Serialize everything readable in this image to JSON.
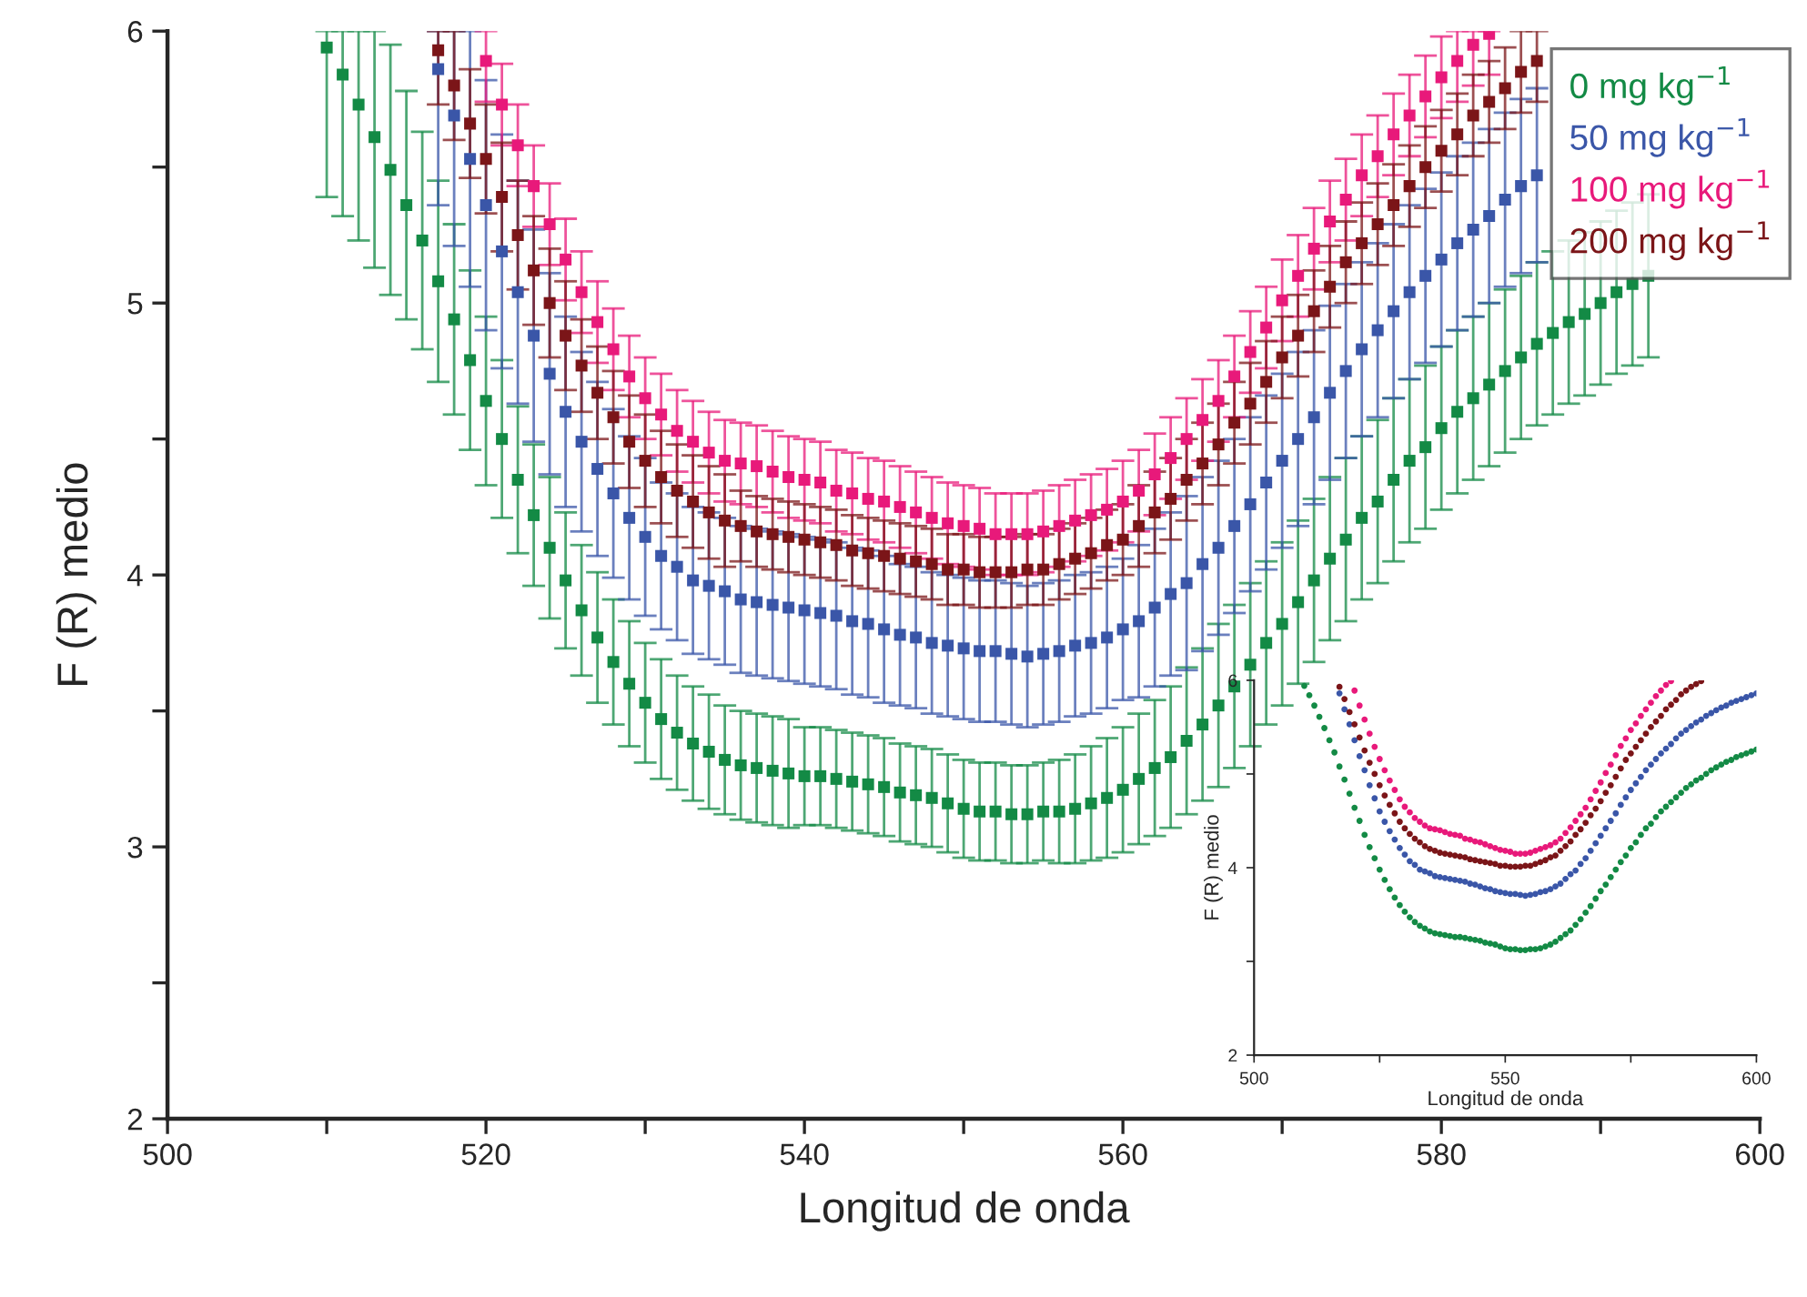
{
  "chart_data": [
    {
      "type": "scatter",
      "xlabel": "Longitud de onda",
      "ylabel": "F (R) medio",
      "marker": "square",
      "legend": "top right",
      "xlim": [
        500,
        600
      ],
      "ylim": [
        2,
        6
      ],
      "xticks": [
        500,
        {
          "value": 510,
          "label": null
        },
        520,
        {
          "value": 530,
          "label": null
        },
        540,
        {
          "value": 550,
          "label": null
        },
        560,
        {
          "value": 570,
          "label": null
        },
        580,
        {
          "value": 590,
          "label": null
        },
        600
      ],
      "yticks": [
        2,
        {
          "value": 2.5,
          "label": null
        },
        3,
        {
          "value": 3.5,
          "label": null
        },
        4,
        {
          "value": 4.5,
          "label": null
        },
        5,
        {
          "value": 5.5,
          "label": null
        },
        6
      ],
      "x": [
        510,
        511,
        512,
        513,
        514,
        515,
        516,
        517,
        518,
        519,
        520,
        521,
        522,
        523,
        524,
        525,
        526,
        527,
        528,
        529,
        530,
        531,
        532,
        533,
        534,
        535,
        536,
        537,
        538,
        539,
        540,
        541,
        542,
        543,
        544,
        545,
        546,
        547,
        548,
        549,
        550,
        551,
        552,
        553,
        554,
        555,
        556,
        557,
        558,
        559,
        560,
        561,
        562,
        563,
        564,
        565,
        566,
        567,
        568,
        569,
        570,
        571,
        572,
        573,
        574,
        575,
        576,
        577,
        578,
        579,
        580,
        581,
        582,
        583,
        584,
        585,
        586,
        587,
        588,
        589,
        590,
        591,
        592,
        593
      ],
      "series": [
        {
          "name": "0 mg kg$^{−1}$",
          "color": "#138a45",
          "values": [
            5.94,
            5.84,
            5.73,
            5.61,
            5.49,
            5.36,
            5.23,
            5.08,
            4.94,
            4.79,
            4.64,
            4.5,
            4.35,
            4.22,
            4.1,
            3.98,
            3.87,
            3.77,
            3.68,
            3.6,
            3.53,
            3.47,
            3.42,
            3.38,
            3.35,
            3.32,
            3.3,
            3.29,
            3.28,
            3.27,
            3.26,
            3.26,
            3.25,
            3.24,
            3.23,
            3.22,
            3.2,
            3.19,
            3.18,
            3.16,
            3.14,
            3.13,
            3.13,
            3.12,
            3.12,
            3.13,
            3.13,
            3.14,
            3.16,
            3.18,
            3.21,
            3.25,
            3.29,
            3.33,
            3.39,
            3.45,
            3.52,
            3.59,
            3.67,
            3.75,
            3.82,
            3.9,
            3.98,
            4.06,
            4.13,
            4.21,
            4.27,
            4.35,
            4.42,
            4.47,
            4.54,
            4.6,
            4.65,
            4.7,
            4.75,
            4.8,
            4.85,
            4.89,
            4.93,
            4.96,
            5.0,
            5.04,
            5.07,
            5.1
          ],
          "errors": [
            [
              5.39,
              6
            ],
            [
              5.32,
              6
            ],
            [
              5.23,
              6
            ],
            [
              5.13,
              6
            ],
            0.46,
            0.42,
            0.4,
            0.37,
            0.35,
            0.33,
            0.31,
            0.29,
            0.27,
            0.26,
            0.26,
            0.25,
            0.24,
            0.24,
            0.23,
            0.23,
            0.22,
            0.22,
            0.21,
            0.21,
            0.21,
            0.2,
            0.2,
            0.2,
            0.2,
            0.2,
            0.18,
            0.18,
            0.18,
            0.18,
            0.18,
            0.18,
            0.18,
            0.18,
            0.18,
            0.18,
            0.18,
            0.18,
            0.18,
            0.18,
            0.18,
            0.18,
            0.19,
            0.2,
            0.21,
            0.22,
            0.23,
            0.24,
            0.25,
            0.26,
            0.27,
            0.28,
            0.3,
            0.3,
            0.3,
            0.3,
            0.3,
            0.3,
            0.3,
            0.3,
            0.3,
            0.3,
            0.3,
            0.3,
            0.3,
            0.3,
            0.3,
            0.3,
            0.3,
            0.3,
            0.3,
            0.3,
            0.3,
            0.3,
            0.3,
            0.3,
            0.3,
            0.3,
            0.3,
            0.3
          ]
        },
        {
          "name": "50 mg kg$^{−1}$",
          "color": "#3a56a8",
          "values": [
            null,
            null,
            null,
            null,
            null,
            null,
            null,
            5.86,
            5.69,
            5.53,
            5.36,
            5.19,
            5.04,
            4.88,
            4.74,
            4.6,
            4.49,
            4.39,
            4.3,
            4.21,
            4.14,
            4.07,
            4.03,
            3.98,
            3.96,
            3.94,
            3.91,
            3.9,
            3.89,
            3.88,
            3.87,
            3.86,
            3.85,
            3.83,
            3.82,
            3.8,
            3.78,
            3.77,
            3.75,
            3.74,
            3.73,
            3.72,
            3.72,
            3.71,
            3.7,
            3.71,
            3.72,
            3.74,
            3.75,
            3.77,
            3.8,
            3.83,
            3.88,
            3.93,
            3.97,
            4.04,
            4.1,
            4.18,
            4.26,
            4.34,
            4.42,
            4.5,
            4.58,
            4.67,
            4.75,
            4.83,
            4.9,
            4.97,
            5.04,
            5.1,
            5.16,
            5.22,
            5.27,
            5.32,
            5.38,
            5.43,
            5.47,
            null,
            null,
            null,
            null,
            null,
            null,
            null
          ],
          "errors": [
            null,
            null,
            null,
            null,
            null,
            null,
            null,
            [
              5.36,
              6
            ],
            [
              5.21,
              6
            ],
            [
              5.06,
              6
            ],
            0.46,
            0.43,
            0.41,
            0.39,
            0.37,
            0.35,
            0.33,
            0.32,
            0.31,
            0.3,
            0.29,
            0.27,
            0.27,
            0.27,
            0.27,
            0.27,
            0.27,
            0.27,
            0.27,
            0.27,
            0.27,
            0.27,
            0.27,
            0.27,
            0.27,
            0.27,
            0.26,
            0.26,
            0.26,
            0.26,
            0.26,
            0.26,
            0.26,
            0.26,
            0.26,
            0.26,
            0.26,
            0.26,
            0.26,
            0.26,
            0.26,
            0.28,
            0.29,
            0.3,
            0.32,
            0.32,
            0.32,
            0.32,
            0.32,
            0.32,
            0.32,
            0.32,
            0.32,
            0.32,
            0.32,
            0.32,
            0.32,
            0.32,
            0.32,
            0.32,
            0.32,
            0.32,
            0.32,
            0.32,
            0.32,
            0.32,
            0.32,
            null,
            null,
            null,
            null,
            null,
            null,
            null
          ]
        },
        {
          "name": "100 mg kg$^{−1}$",
          "color": "#e8197a",
          "values": [
            null,
            null,
            null,
            null,
            null,
            null,
            null,
            null,
            null,
            null,
            5.89,
            5.73,
            5.58,
            5.43,
            5.29,
            5.16,
            5.04,
            4.93,
            4.83,
            4.73,
            4.65,
            4.59,
            4.53,
            4.49,
            4.45,
            4.42,
            4.41,
            4.4,
            4.38,
            4.36,
            4.35,
            4.34,
            4.31,
            4.3,
            4.28,
            4.27,
            4.25,
            4.23,
            4.21,
            4.19,
            4.18,
            4.17,
            4.15,
            4.15,
            4.15,
            4.16,
            4.18,
            4.2,
            4.22,
            4.24,
            4.27,
            4.31,
            4.37,
            4.43,
            4.5,
            4.57,
            4.64,
            4.73,
            4.82,
            4.91,
            5.01,
            5.1,
            5.2,
            5.3,
            5.38,
            5.47,
            5.54,
            5.62,
            5.69,
            5.76,
            5.83,
            5.89,
            5.95,
            5.99,
            null,
            null,
            null,
            null,
            null,
            null,
            null,
            null,
            null,
            null
          ],
          "errors": [
            null,
            null,
            null,
            null,
            null,
            null,
            null,
            null,
            null,
            null,
            [
              5.74,
              6
            ],
            0.15,
            0.15,
            0.15,
            0.15,
            0.15,
            0.15,
            0.15,
            0.15,
            0.15,
            0.15,
            0.15,
            0.15,
            0.15,
            0.15,
            0.15,
            0.15,
            0.15,
            0.15,
            0.15,
            0.15,
            0.15,
            0.15,
            0.15,
            0.15,
            0.15,
            0.15,
            0.15,
            0.15,
            0.15,
            0.15,
            0.15,
            0.15,
            0.15,
            0.15,
            0.15,
            0.15,
            0.15,
            0.15,
            0.15,
            0.15,
            0.15,
            0.15,
            0.15,
            0.15,
            0.15,
            0.15,
            0.15,
            0.15,
            0.15,
            0.15,
            0.15,
            0.15,
            0.15,
            0.15,
            0.15,
            0.15,
            0.15,
            0.15,
            0.15,
            0.15,
            [
              5.74,
              6
            ],
            [
              5.8,
              6
            ],
            [
              5.84,
              6
            ],
            null,
            null,
            null,
            null,
            null,
            null,
            null,
            null,
            null,
            null
          ]
        },
        {
          "name": "200 mg kg$^{−1}$",
          "color": "#7b1518",
          "values": [
            null,
            null,
            null,
            null,
            null,
            null,
            null,
            5.93,
            5.8,
            5.66,
            5.53,
            5.39,
            5.25,
            5.12,
            5.0,
            4.88,
            4.77,
            4.67,
            4.58,
            4.49,
            4.42,
            4.36,
            4.31,
            4.27,
            4.23,
            4.2,
            4.18,
            4.16,
            4.15,
            4.14,
            4.13,
            4.12,
            4.11,
            4.09,
            4.08,
            4.07,
            4.06,
            4.05,
            4.04,
            4.02,
            4.02,
            4.01,
            4.01,
            4.01,
            4.02,
            4.02,
            4.04,
            4.06,
            4.08,
            4.11,
            4.13,
            4.18,
            4.23,
            4.28,
            4.35,
            4.41,
            4.48,
            4.56,
            4.63,
            4.71,
            4.8,
            4.88,
            4.97,
            5.06,
            5.15,
            5.22,
            5.29,
            5.36,
            5.43,
            5.5,
            5.56,
            5.62,
            5.69,
            5.74,
            5.79,
            5.85,
            5.89,
            null,
            null,
            null,
            null,
            null,
            null,
            null
          ],
          "errors": [
            null,
            null,
            null,
            null,
            null,
            null,
            null,
            [
              5.73,
              6
            ],
            [
              5.6,
              6
            ],
            0.2,
            0.2,
            0.2,
            0.2,
            0.2,
            0.2,
            0.2,
            0.17,
            0.17,
            0.17,
            0.17,
            0.17,
            0.17,
            0.17,
            0.17,
            0.17,
            0.17,
            0.13,
            0.13,
            0.13,
            0.13,
            0.13,
            0.13,
            0.13,
            0.13,
            0.13,
            0.13,
            0.13,
            0.13,
            0.13,
            0.13,
            0.13,
            0.13,
            0.13,
            0.13,
            0.13,
            0.13,
            0.13,
            0.13,
            0.13,
            0.13,
            0.13,
            0.15,
            0.15,
            0.15,
            0.15,
            0.15,
            0.15,
            0.15,
            0.15,
            0.15,
            0.15,
            0.15,
            0.15,
            0.15,
            0.15,
            0.15,
            0.15,
            0.15,
            0.15,
            0.15,
            0.15,
            0.15,
            0.15,
            0.15,
            0.15,
            [
              5.7,
              6
            ],
            [
              5.74,
              6
            ],
            null,
            null,
            null,
            null,
            null,
            null,
            null
          ]
        }
      ]
    },
    {
      "type": "scatter",
      "xlabel": "Longitud de onda",
      "ylabel": "F (R) medio",
      "marker": "circle",
      "xlim": [
        500,
        600
      ],
      "ylim": [
        2,
        6
      ],
      "xticks": [
        500,
        {
          "value": 525,
          "label": null
        },
        550,
        {
          "value": 575,
          "label": null
        },
        600
      ],
      "yticks": [
        2,
        {
          "value": 3,
          "label": null
        },
        4,
        {
          "value": 5,
          "label": null
        },
        6
      ],
      "x": [
        510,
        511,
        512,
        513,
        514,
        515,
        516,
        517,
        518,
        519,
        520,
        521,
        522,
        523,
        524,
        525,
        526,
        527,
        528,
        529,
        530,
        531,
        532,
        533,
        534,
        535,
        536,
        537,
        538,
        539,
        540,
        541,
        542,
        543,
        544,
        545,
        546,
        547,
        548,
        549,
        550,
        551,
        552,
        553,
        554,
        555,
        556,
        557,
        558,
        559,
        560,
        561,
        562,
        563,
        564,
        565,
        566,
        567,
        568,
        569,
        570,
        571,
        572,
        573,
        574,
        575,
        576,
        577,
        578,
        579,
        580,
        581,
        582,
        583,
        584,
        585,
        586,
        587,
        588,
        589,
        590,
        591,
        592,
        593,
        594,
        595,
        596,
        597,
        598,
        599,
        600
      ],
      "series": [
        {
          "color": "#138a45",
          "values": [
            5.94,
            5.84,
            5.73,
            5.61,
            5.49,
            5.36,
            5.23,
            5.08,
            4.94,
            4.79,
            4.64,
            4.5,
            4.35,
            4.22,
            4.1,
            3.98,
            3.87,
            3.77,
            3.68,
            3.6,
            3.53,
            3.47,
            3.42,
            3.38,
            3.35,
            3.32,
            3.3,
            3.29,
            3.28,
            3.27,
            3.26,
            3.26,
            3.25,
            3.24,
            3.23,
            3.22,
            3.2,
            3.19,
            3.18,
            3.16,
            3.14,
            3.13,
            3.13,
            3.12,
            3.12,
            3.13,
            3.13,
            3.14,
            3.16,
            3.18,
            3.21,
            3.25,
            3.29,
            3.33,
            3.39,
            3.45,
            3.52,
            3.59,
            3.67,
            3.75,
            3.82,
            3.9,
            3.98,
            4.06,
            4.13,
            4.21,
            4.27,
            4.35,
            4.42,
            4.47,
            4.54,
            4.6,
            4.65,
            4.7,
            4.75,
            4.8,
            4.85,
            4.89,
            4.93,
            4.96,
            5.0,
            5.04,
            5.07,
            5.1,
            5.13,
            5.15,
            5.18,
            5.2,
            5.22,
            5.24,
            5.26
          ]
        },
        {
          "color": "#3a56a8",
          "values": [
            null,
            null,
            null,
            null,
            null,
            null,
            null,
            5.86,
            5.69,
            5.53,
            5.36,
            5.19,
            5.04,
            4.88,
            4.74,
            4.6,
            4.49,
            4.39,
            4.3,
            4.21,
            4.14,
            4.07,
            4.03,
            3.98,
            3.96,
            3.94,
            3.91,
            3.9,
            3.89,
            3.88,
            3.87,
            3.86,
            3.85,
            3.83,
            3.82,
            3.8,
            3.78,
            3.77,
            3.75,
            3.74,
            3.73,
            3.72,
            3.72,
            3.71,
            3.7,
            3.71,
            3.72,
            3.74,
            3.75,
            3.77,
            3.8,
            3.83,
            3.88,
            3.93,
            3.97,
            4.04,
            4.1,
            4.18,
            4.26,
            4.34,
            4.42,
            4.5,
            4.58,
            4.67,
            4.75,
            4.83,
            4.9,
            4.97,
            5.04,
            5.1,
            5.16,
            5.22,
            5.27,
            5.32,
            5.38,
            5.43,
            5.47,
            5.51,
            5.55,
            5.58,
            5.62,
            5.65,
            5.68,
            5.71,
            5.73,
            5.76,
            5.78,
            5.8,
            5.82,
            5.84,
            5.86
          ]
        },
        {
          "color": "#e8197a",
          "values": [
            null,
            null,
            null,
            null,
            null,
            null,
            null,
            null,
            null,
            null,
            5.89,
            5.73,
            5.58,
            5.43,
            5.29,
            5.16,
            5.04,
            4.93,
            4.83,
            4.73,
            4.65,
            4.59,
            4.53,
            4.49,
            4.45,
            4.42,
            4.41,
            4.4,
            4.38,
            4.36,
            4.35,
            4.34,
            4.31,
            4.3,
            4.28,
            4.27,
            4.25,
            4.23,
            4.21,
            4.19,
            4.18,
            4.17,
            4.15,
            4.15,
            4.15,
            4.16,
            4.18,
            4.2,
            4.22,
            4.24,
            4.27,
            4.31,
            4.37,
            4.43,
            4.5,
            4.57,
            4.64,
            4.73,
            4.82,
            4.91,
            5.01,
            5.1,
            5.2,
            5.3,
            5.38,
            5.47,
            5.54,
            5.62,
            5.69,
            5.76,
            5.83,
            5.89,
            5.95,
            5.99,
            null,
            null,
            null,
            null,
            null,
            null,
            null,
            null,
            null,
            null,
            null,
            null,
            null,
            null,
            null,
            null,
            null
          ]
        },
        {
          "color": "#7b1518",
          "values": [
            null,
            null,
            null,
            null,
            null,
            null,
            null,
            5.93,
            5.8,
            5.66,
            5.53,
            5.39,
            5.25,
            5.12,
            5.0,
            4.88,
            4.77,
            4.67,
            4.58,
            4.49,
            4.42,
            4.36,
            4.31,
            4.27,
            4.23,
            4.2,
            4.18,
            4.16,
            4.15,
            4.14,
            4.13,
            4.12,
            4.11,
            4.09,
            4.08,
            4.07,
            4.06,
            4.05,
            4.04,
            4.02,
            4.02,
            4.01,
            4.01,
            4.01,
            4.02,
            4.02,
            4.04,
            4.06,
            4.08,
            4.11,
            4.13,
            4.18,
            4.23,
            4.28,
            4.35,
            4.41,
            4.48,
            4.56,
            4.63,
            4.71,
            4.8,
            4.88,
            4.97,
            5.06,
            5.15,
            5.22,
            5.29,
            5.36,
            5.43,
            5.5,
            5.56,
            5.62,
            5.69,
            5.74,
            5.79,
            5.85,
            5.89,
            5.93,
            5.96,
            5.99,
            null,
            null,
            null,
            null,
            null,
            null,
            null,
            null,
            null,
            null,
            null
          ]
        }
      ]
    }
  ]
}
